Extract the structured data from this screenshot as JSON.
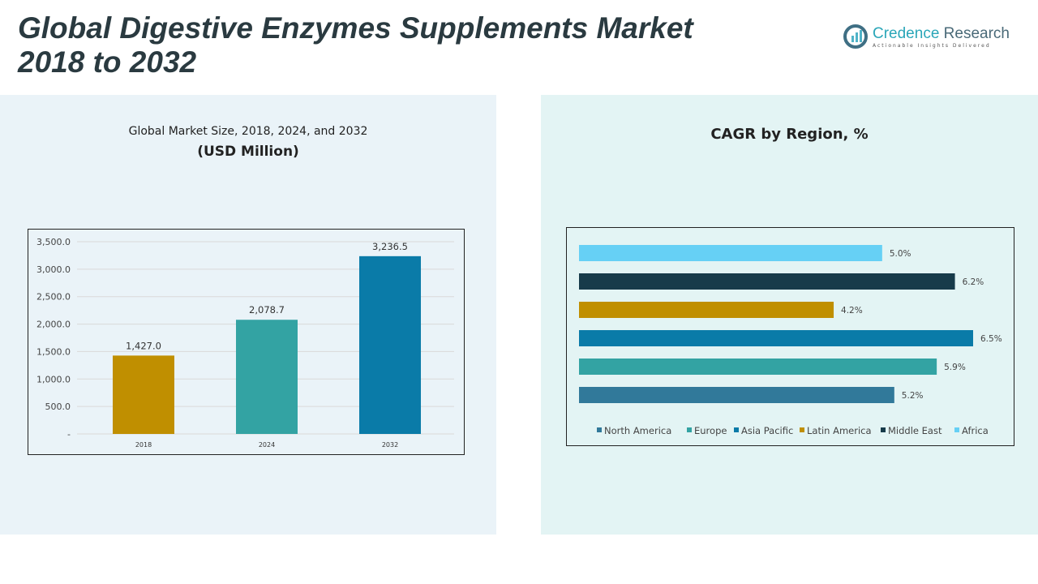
{
  "header": {
    "title_line1": "Global Digestive Enzymes Supplements Market",
    "title_line2": "2018 to 2032"
  },
  "logo": {
    "name_part1": "Credence",
    "name_part2": "Research",
    "tagline": "Actionable Insights Delivered"
  },
  "chart_data": [
    {
      "type": "bar",
      "title": "Global Market Size, 2018, 2024, and 2032",
      "subtitle": "(USD Million)",
      "categories": [
        "2018",
        "2024",
        "2032"
      ],
      "values": [
        1427.0,
        2078.7,
        3236.5
      ],
      "value_labels": [
        "1,427.0",
        "2,078.7",
        "3,236.5"
      ],
      "colors": [
        "#c08f00",
        "#33a3a3",
        "#0a7ba8"
      ],
      "ylim": [
        0,
        3500
      ],
      "yticks": [
        0,
        500,
        1000,
        1500,
        2000,
        2500,
        3000,
        3500
      ],
      "ytick_labels": [
        "-",
        "500.0",
        "1,000.0",
        "1,500.0",
        "2,000.0",
        "2,500.0",
        "3,000.0",
        "3,500.0"
      ],
      "grid": true
    },
    {
      "type": "bar",
      "orientation": "horizontal",
      "title": "CAGR by Region, %",
      "series": [
        {
          "name": "North America",
          "value": 5.2,
          "label": "5.2%",
          "color": "#31799a"
        },
        {
          "name": "Europe",
          "value": 5.9,
          "label": "5.9%",
          "color": "#33a3a3"
        },
        {
          "name": "Asia Pacific",
          "value": 6.5,
          "label": "6.5%",
          "color": "#0a7ba8"
        },
        {
          "name": "Latin America",
          "value": 4.2,
          "label": "4.2%",
          "color": "#c08f00"
        },
        {
          "name": "Middle East",
          "value": 6.2,
          "label": "6.2%",
          "color": "#173b4a"
        },
        {
          "name": "Africa",
          "value": 5.0,
          "label": "5.0%",
          "color": "#66d0f5"
        }
      ],
      "xlim": [
        0,
        6.5
      ],
      "legend": "bottom"
    }
  ]
}
